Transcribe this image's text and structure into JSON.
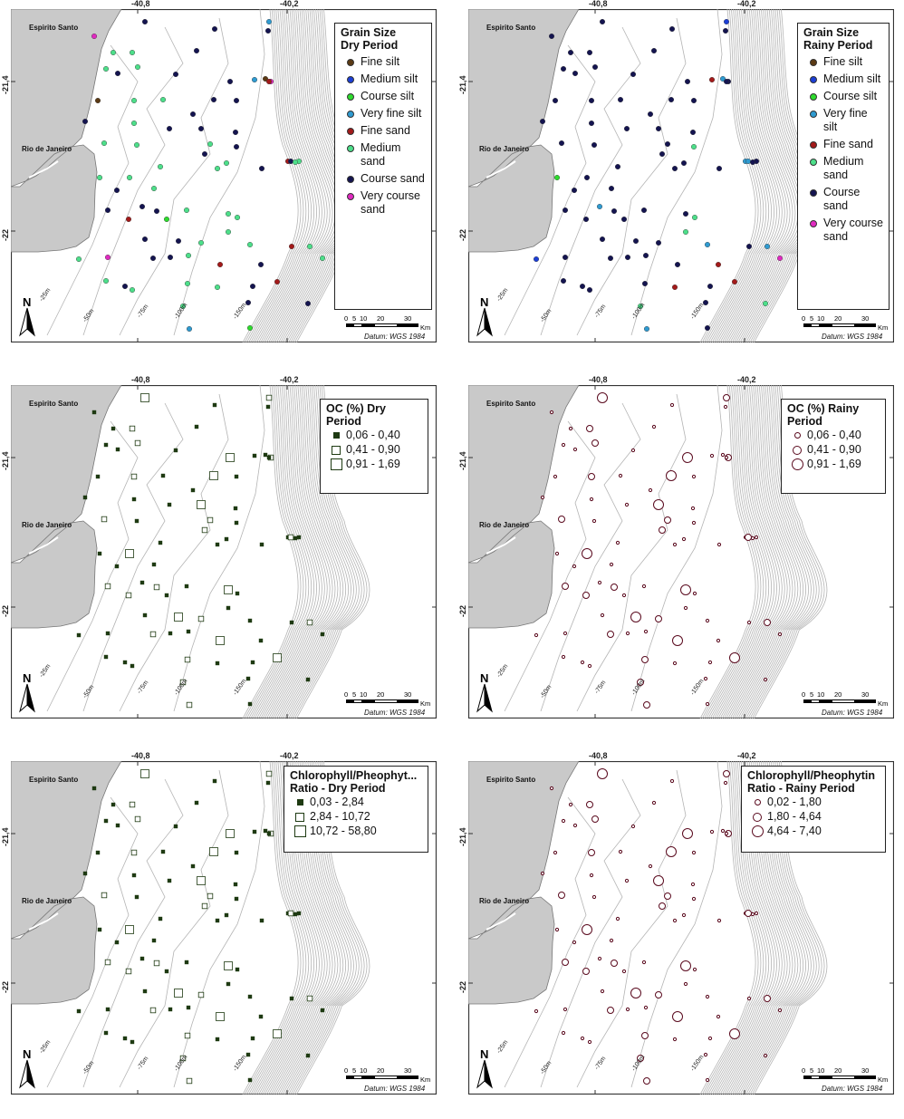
{
  "common": {
    "x_ticks": [
      "-40,8",
      "-40,2"
    ],
    "y_ticks": [
      "-21,4",
      "-22"
    ],
    "places": [
      "Espirito Santo",
      "Rio de Janeiro"
    ],
    "depths": [
      "-25m",
      "-50m",
      "-75m",
      "-100m",
      "-150m"
    ],
    "north_label": "N",
    "scale_numbers": [
      "0",
      "5",
      "10",
      "20",
      "30"
    ],
    "scale_unit": "Km",
    "datum": "Datum: WGS 1984"
  },
  "colors": {
    "land": "#c9c9c9",
    "contour": "#b4b4b4",
    "frame": "#333333",
    "fine_silt": "#5b3a14",
    "medium_silt": "#1c3fd6",
    "course_silt": "#2edb2e",
    "very_fine_silt": "#2f9bd1",
    "fine_sand": "#a31a1a",
    "medium_sand": "#4ddf8a",
    "course_sand": "#141450",
    "very_course_sand": "#e02ac0",
    "oc_dry": "#1e3a12",
    "oc_rainy": "#5a0a1e"
  },
  "panels": [
    {
      "id": "grain-dry",
      "legend_title": [
        "Grain Size",
        "Dry Period"
      ],
      "legend_items": [
        {
          "label": "Fine silt",
          "color": "#5b3a14"
        },
        {
          "label": "Medium silt",
          "color": "#1c3fd6"
        },
        {
          "label": "Course silt",
          "color": "#2edb2e"
        },
        {
          "label": "Very fine silt",
          "color": "#2f9bd1"
        },
        {
          "label": "Fine sand",
          "color": "#a31a1a"
        },
        {
          "label": "Medium sand",
          "color": "#4ddf8a"
        },
        {
          "label": "Course sand",
          "color": "#141450"
        },
        {
          "label": "Very course sand",
          "color": "#e02ac0"
        }
      ]
    },
    {
      "id": "grain-rainy",
      "legend_title": [
        "Grain Size",
        "Rainy Period"
      ],
      "legend_items": [
        {
          "label": "Fine silt",
          "color": "#5b3a14"
        },
        {
          "label": "Medium silt",
          "color": "#1c3fd6"
        },
        {
          "label": "Course silt",
          "color": "#2edb2e"
        },
        {
          "label": "Very fine silt",
          "color": "#2f9bd1"
        },
        {
          "label": "Fine sand",
          "color": "#a31a1a"
        },
        {
          "label": "Medium sand",
          "color": "#4ddf8a"
        },
        {
          "label": "Course sand",
          "color": "#141450"
        },
        {
          "label": "Very course sand",
          "color": "#e02ac0"
        }
      ]
    },
    {
      "id": "oc-dry",
      "legend_title": [
        "OC (%) Dry",
        "Period"
      ],
      "legend_items": [
        {
          "label": "0,06 - 0,40",
          "size": "small"
        },
        {
          "label": "0,41 - 0,90",
          "size": "medium"
        },
        {
          "label": "0,91 - 1,69",
          "size": "large"
        }
      ]
    },
    {
      "id": "oc-rainy",
      "legend_title": [
        "OC (%) Rainy",
        "Period"
      ],
      "legend_items": [
        {
          "label": "0,06 - 0,40",
          "size": "small"
        },
        {
          "label": "0,41 - 0,90",
          "size": "medium"
        },
        {
          "label": "0,91 - 1,69",
          "size": "large"
        }
      ]
    },
    {
      "id": "chl-dry",
      "legend_title": [
        "Chlorophyll/Pheophyt...",
        "Ratio - Dry Period"
      ],
      "legend_items": [
        {
          "label": "0,03 - 2,84",
          "size": "small"
        },
        {
          "label": "2,84 - 10,72",
          "size": "medium"
        },
        {
          "label": "10,72 - 58,80",
          "size": "large"
        }
      ]
    },
    {
      "id": "chl-rainy",
      "legend_title": [
        "Chlorophyll/Pheophytin",
        "Ratio - Rainy Period"
      ],
      "legend_items": [
        {
          "label": "0,02 - 1,80",
          "size": "small"
        },
        {
          "label": "1,80 - 4,64",
          "size": "medium"
        },
        {
          "label": "4,64 - 7,40",
          "size": "large"
        }
      ]
    }
  ]
}
